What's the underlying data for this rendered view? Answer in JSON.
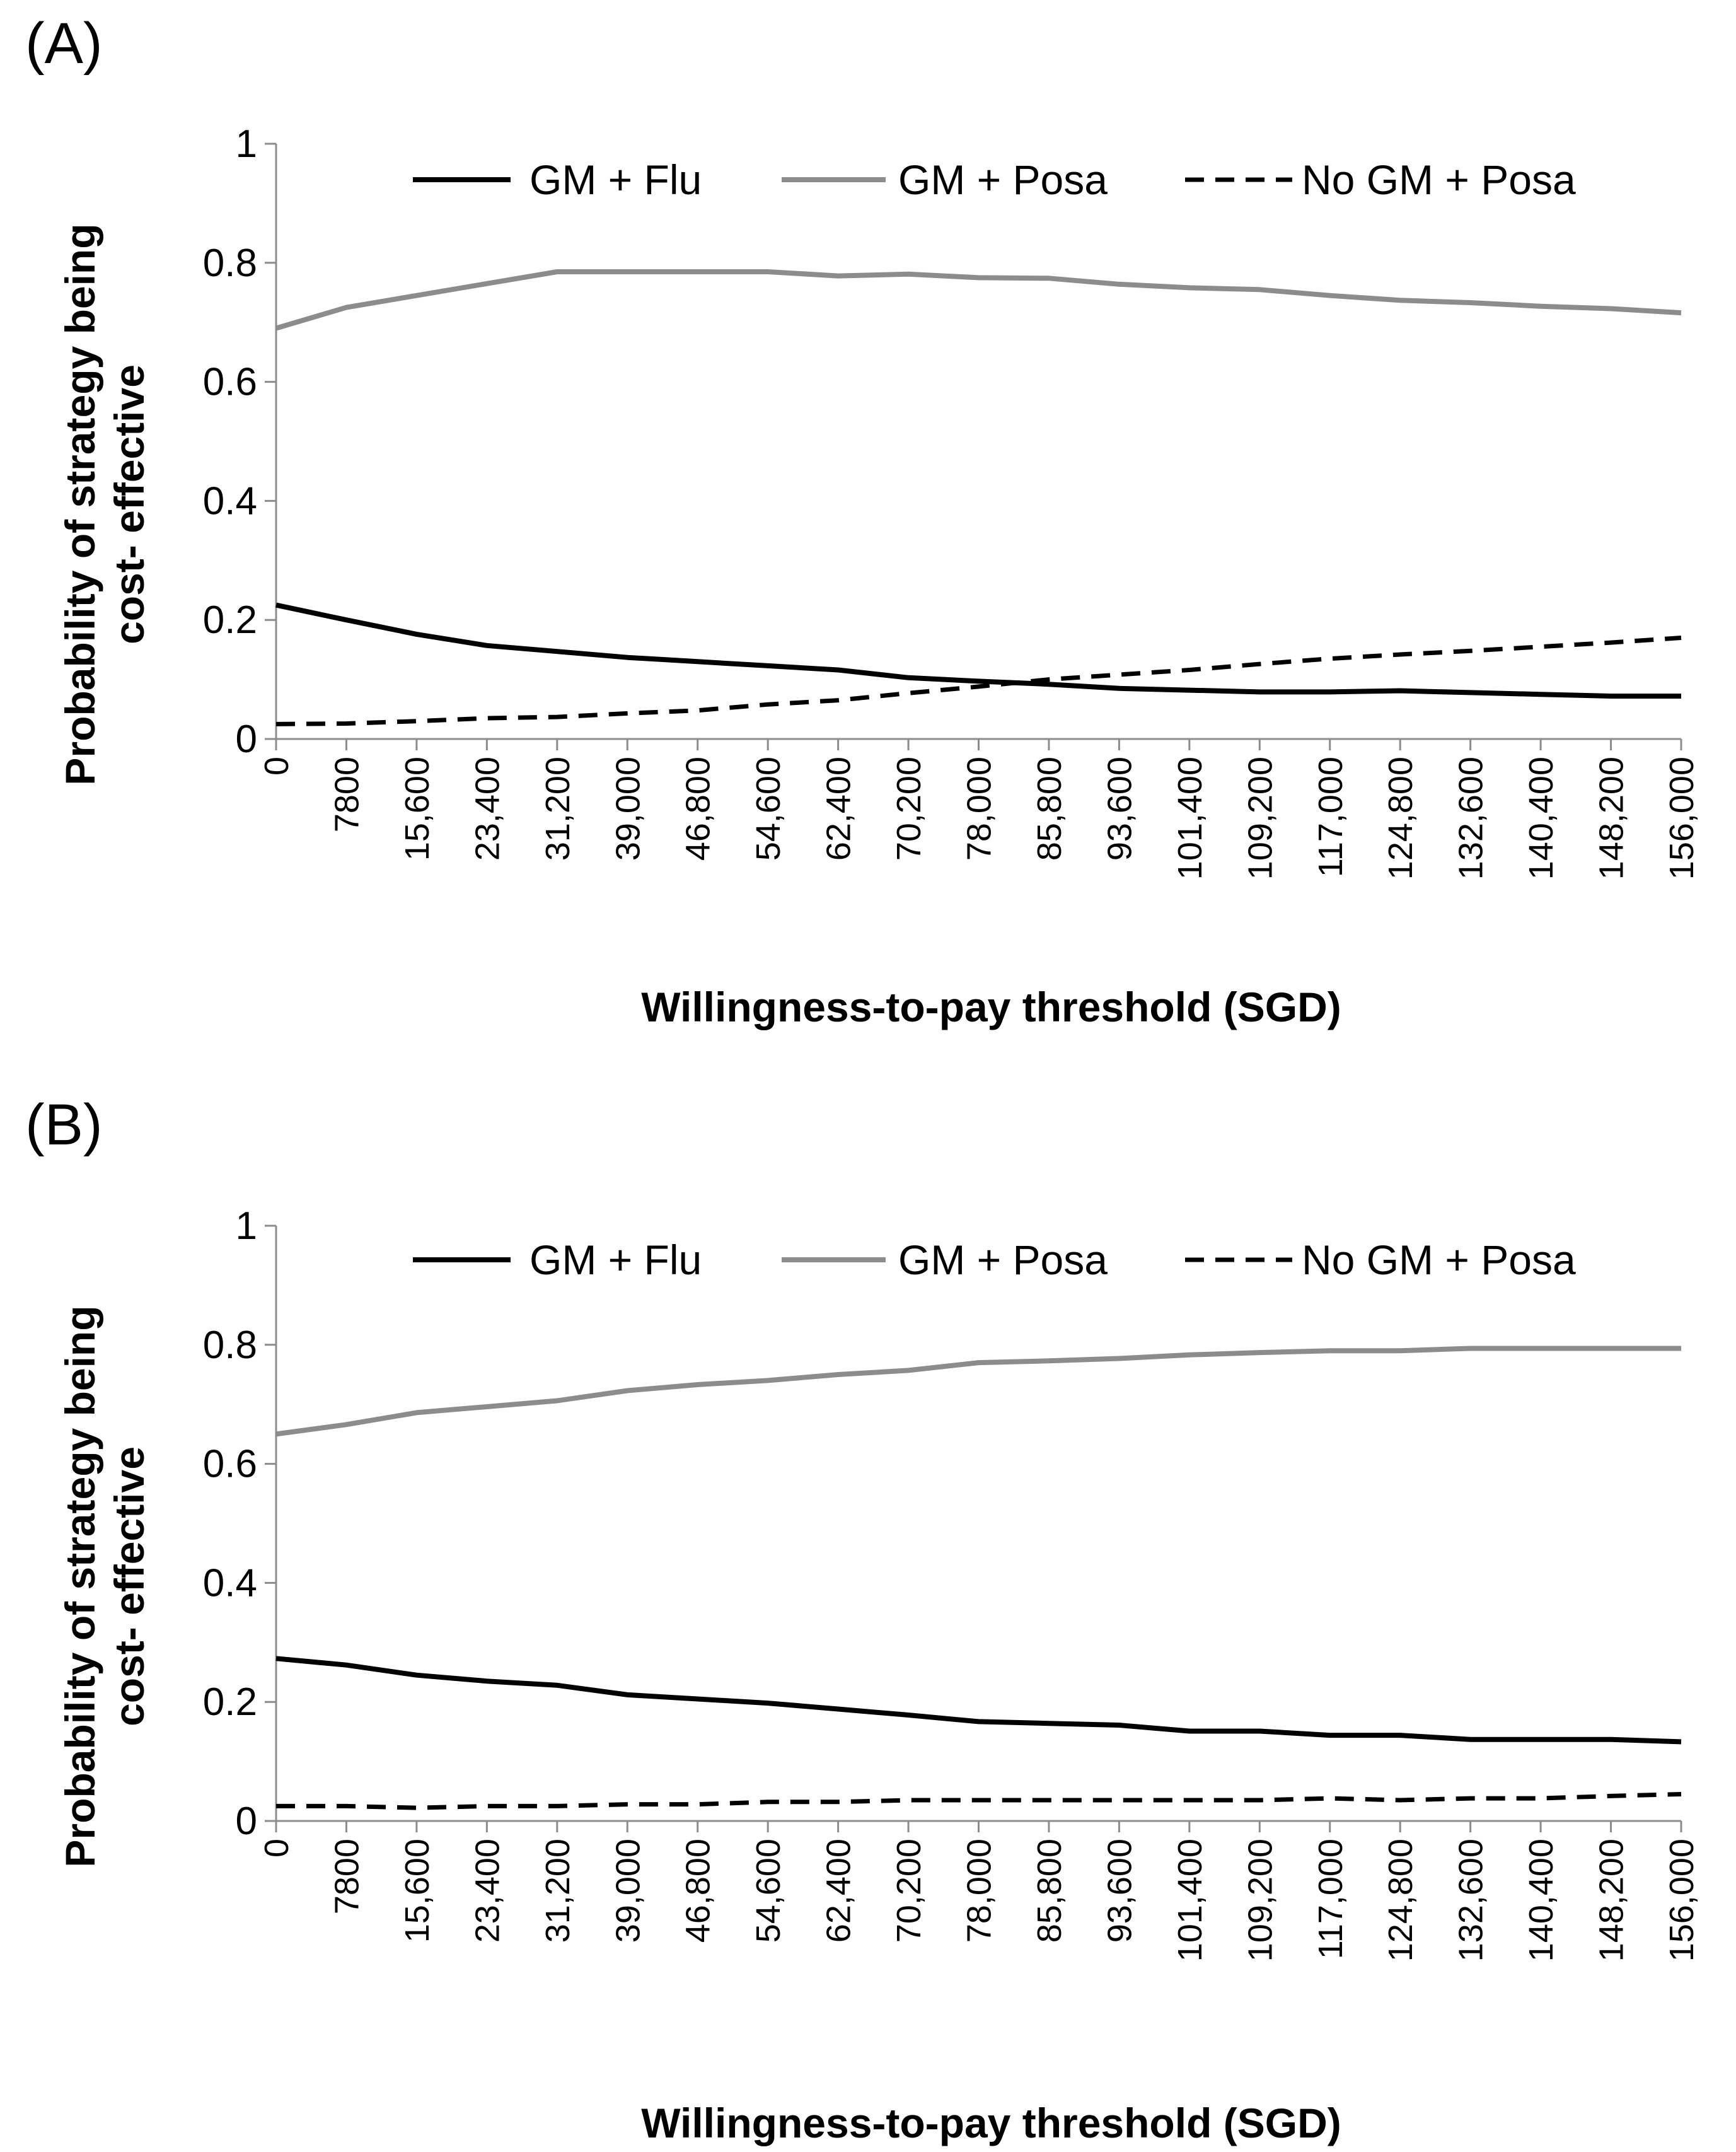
{
  "chart_data": [
    {
      "panel_label": "(A)",
      "type": "line",
      "xlabel": "Willingness-to-pay threshold (SGD)",
      "ylabel": "Probability of strategy being cost- effective",
      "ylim": [
        0,
        1
      ],
      "yticks": [
        "0",
        "0.2",
        "0.4",
        "0.6",
        "0.8",
        "1"
      ],
      "categories": [
        "0",
        "7800",
        "15,600",
        "23,400",
        "31,200",
        "39,000",
        "46,800",
        "54,600",
        "62,400",
        "70,200",
        "78,000",
        "85,800",
        "93,600",
        "101,400",
        "109,200",
        "117,000",
        "124,800",
        "132,600",
        "140,400",
        "148,200",
        "156,000"
      ],
      "x": [
        0,
        7800,
        15600,
        23400,
        31200,
        39000,
        46800,
        54600,
        62400,
        70200,
        78000,
        85800,
        93600,
        101400,
        109200,
        117000,
        124800,
        132600,
        140400,
        148200,
        156000
      ],
      "legend_position": "top",
      "grid": false,
      "series": [
        {
          "name": "GM + Flu",
          "color": "#000000",
          "dash": "solid",
          "values": [
            0.225,
            0.2,
            0.176,
            0.157,
            0.147,
            0.137,
            0.13,
            0.123,
            0.116,
            0.103,
            0.097,
            0.092,
            0.085,
            0.082,
            0.079,
            0.079,
            0.081,
            0.078,
            0.075,
            0.072,
            0.072
          ]
        },
        {
          "name": "GM + Posa",
          "color": "#8c8c8c",
          "dash": "solid",
          "values": [
            0.69,
            0.725,
            0.745,
            0.765,
            0.785,
            0.785,
            0.785,
            0.785,
            0.778,
            0.781,
            0.775,
            0.774,
            0.764,
            0.758,
            0.755,
            0.745,
            0.737,
            0.733,
            0.727,
            0.723,
            0.716
          ]
        },
        {
          "name": "No GM + Posa",
          "color": "#000000",
          "dash": "dashed",
          "values": [
            0.025,
            0.026,
            0.03,
            0.035,
            0.037,
            0.043,
            0.048,
            0.058,
            0.065,
            0.077,
            0.088,
            0.1,
            0.108,
            0.116,
            0.126,
            0.135,
            0.142,
            0.148,
            0.155,
            0.162,
            0.17
          ]
        }
      ]
    },
    {
      "panel_label": "(B)",
      "type": "line",
      "xlabel": "Willingness-to-pay threshold (SGD)",
      "ylabel": "Probability of strategy being cost- effective",
      "ylim": [
        0,
        1
      ],
      "yticks": [
        "0",
        "0.2",
        "0.4",
        "0.6",
        "0.8",
        "1"
      ],
      "categories": [
        "0",
        "7800",
        "15,600",
        "23,400",
        "31,200",
        "39,000",
        "46,800",
        "54,600",
        "62,400",
        "70,200",
        "78,000",
        "85,800",
        "93,600",
        "101,400",
        "109,200",
        "117,000",
        "124,800",
        "132,600",
        "140,400",
        "148,200",
        "156,000"
      ],
      "x": [
        0,
        7800,
        15600,
        23400,
        31200,
        39000,
        46800,
        54600,
        62400,
        70200,
        78000,
        85800,
        93600,
        101400,
        109200,
        117000,
        124800,
        132600,
        140400,
        148200,
        156000
      ],
      "legend_position": "top",
      "grid": false,
      "series": [
        {
          "name": "GM + Flu",
          "color": "#000000",
          "dash": "solid",
          "values": [
            0.273,
            0.262,
            0.245,
            0.235,
            0.228,
            0.212,
            0.205,
            0.198,
            0.188,
            0.178,
            0.167,
            0.164,
            0.161,
            0.151,
            0.151,
            0.144,
            0.144,
            0.137,
            0.137,
            0.137,
            0.133
          ]
        },
        {
          "name": "GM + Posa",
          "color": "#8c8c8c",
          "dash": "solid",
          "values": [
            0.65,
            0.666,
            0.686,
            0.696,
            0.706,
            0.723,
            0.733,
            0.74,
            0.75,
            0.757,
            0.77,
            0.773,
            0.777,
            0.783,
            0.787,
            0.79,
            0.79,
            0.794,
            0.794,
            0.794,
            0.794
          ]
        },
        {
          "name": "No GM + Posa",
          "color": "#000000",
          "dash": "dashed",
          "values": [
            0.025,
            0.025,
            0.022,
            0.025,
            0.025,
            0.028,
            0.028,
            0.032,
            0.032,
            0.035,
            0.035,
            0.035,
            0.035,
            0.035,
            0.035,
            0.038,
            0.035,
            0.038,
            0.038,
            0.042,
            0.045
          ]
        }
      ]
    }
  ]
}
